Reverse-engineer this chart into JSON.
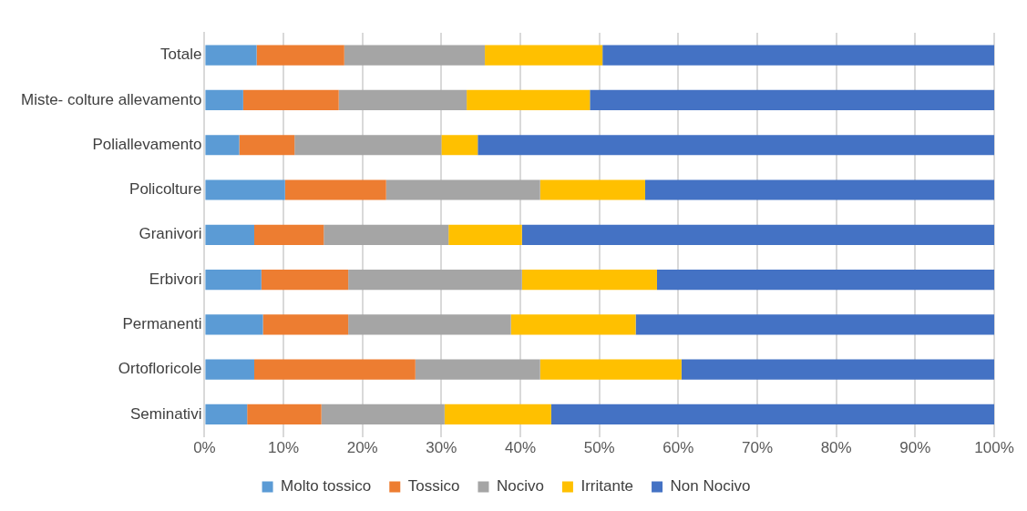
{
  "chart_data": {
    "type": "bar",
    "orientation": "horizontal",
    "stacked": true,
    "categories": [
      "Totale",
      "Miste- colture allevamento",
      "Poliallevamento",
      "Policolture",
      "Granivori",
      "Erbivori",
      "Permanenti",
      "Ortofloricole",
      "Seminativi"
    ],
    "series": [
      {
        "name": "Molto tossico",
        "color": "#5b9bd5",
        "values": [
          6.6,
          4.9,
          4.4,
          10.2,
          6.3,
          7.2,
          7.4,
          6.3,
          5.4
        ]
      },
      {
        "name": "Tossico",
        "color": "#ed7d31",
        "values": [
          11.1,
          12.1,
          7.0,
          12.8,
          8.8,
          11.0,
          10.8,
          20.4,
          9.4
        ]
      },
      {
        "name": "Nocivo",
        "color": "#a5a5a5",
        "values": [
          17.8,
          16.2,
          18.6,
          19.5,
          15.8,
          22.0,
          20.6,
          15.8,
          15.6
        ]
      },
      {
        "name": "Irritante",
        "color": "#ffc000",
        "values": [
          14.9,
          15.6,
          4.6,
          13.3,
          9.3,
          17.1,
          15.8,
          17.9,
          13.5
        ]
      },
      {
        "name": "Non Nocivo",
        "color": "#4472c4",
        "values": [
          49.6,
          51.2,
          65.4,
          44.2,
          59.8,
          42.7,
          45.4,
          39.6,
          56.1
        ]
      }
    ],
    "xlim": [
      0,
      100
    ],
    "xticks": [
      {
        "value": 0,
        "label": "0%"
      },
      {
        "value": 10,
        "label": "10%"
      },
      {
        "value": 20,
        "label": "20%"
      },
      {
        "value": 30,
        "label": "30%"
      },
      {
        "value": 40,
        "label": "40%"
      },
      {
        "value": 50,
        "label": "50%"
      },
      {
        "value": 60,
        "label": "60%"
      },
      {
        "value": 70,
        "label": "70%"
      },
      {
        "value": 80,
        "label": "80%"
      },
      {
        "value": 90,
        "label": "90%"
      },
      {
        "value": 100,
        "label": "100%"
      }
    ],
    "grid": "x",
    "legend": "bottom"
  }
}
